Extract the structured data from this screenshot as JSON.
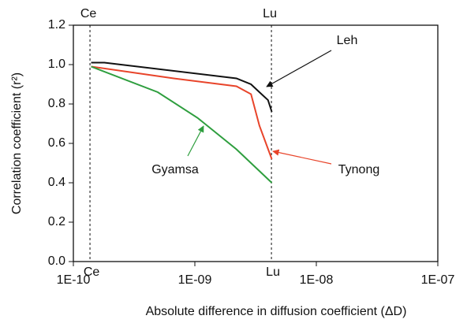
{
  "chart_data": {
    "type": "line",
    "xlabel": "Absolute difference in diffusion coefficient (ΔD)",
    "ylabel": "Correlation coefficient (r²)",
    "xscale": "log",
    "xlim": [
      1e-10,
      1e-07
    ],
    "xticks": [
      {
        "value": 1e-10,
        "label": "1E-10"
      },
      {
        "value": 1e-09,
        "label": "1E-09"
      },
      {
        "value": 1e-08,
        "label": "1E-08"
      },
      {
        "value": 1e-07,
        "label": "1E-07"
      }
    ],
    "ylim": [
      0,
      1.2
    ],
    "yticks": [
      {
        "value": 0,
        "label": "0.0"
      },
      0.2,
      0.4,
      0.6,
      0.8,
      {
        "value": 1,
        "label": "1.0"
      },
      1.2
    ],
    "vlines": [
      {
        "x": 1.37e-10,
        "label": "Ce"
      },
      {
        "x": 4.27e-09,
        "label": "Lu"
      }
    ],
    "series": [
      {
        "name": "Leh",
        "color": "#111111",
        "x": [
          1.4e-10,
          1.8e-10,
          2.2e-09,
          2.9e-09,
          3.4e-09,
          4e-09,
          4.3e-09
        ],
        "values": [
          1.01,
          1.01,
          0.93,
          0.9,
          0.86,
          0.82,
          0.76
        ]
      },
      {
        "name": "Tynong",
        "color": "#e8442a",
        "x": [
          1.4e-10,
          6.7e-10,
          2.2e-09,
          2.9e-09,
          3.4e-09,
          4.3e-09
        ],
        "values": [
          0.99,
          0.93,
          0.89,
          0.85,
          0.69,
          0.52
        ]
      },
      {
        "name": "Gyamsa",
        "color": "#2e9e3e",
        "x": [
          1.4e-10,
          4.95e-10,
          1.05e-09,
          2.2e-09,
          4.3e-09
        ],
        "values": [
          0.99,
          0.86,
          0.73,
          0.57,
          0.4
        ]
      }
    ]
  }
}
